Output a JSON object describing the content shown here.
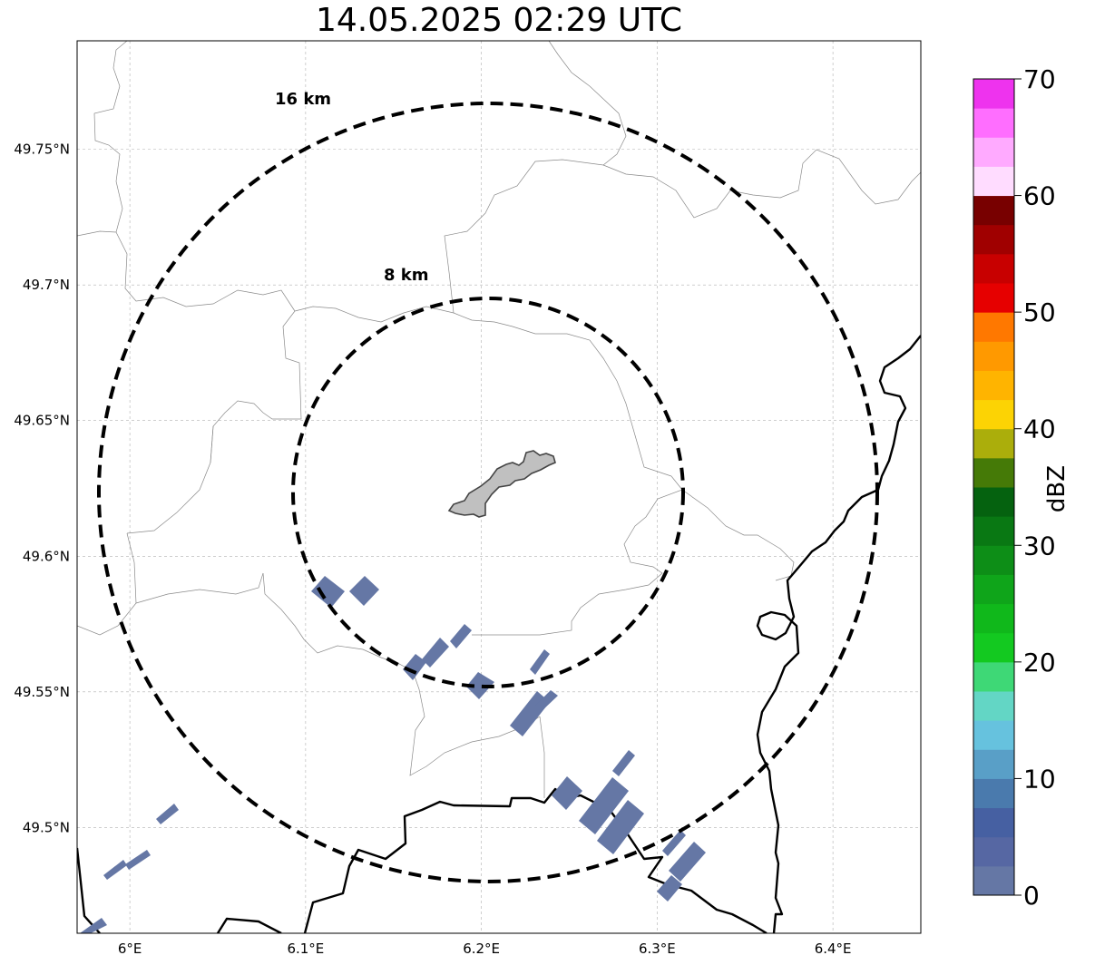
{
  "title": "14.05.2025 02:29 UTC",
  "map": {
    "lon_range": [
      5.97,
      6.45
    ],
    "lat_range": [
      49.461,
      49.79
    ],
    "lon_ticks": [
      {
        "value": 6.0,
        "label": "6°E"
      },
      {
        "value": 6.1,
        "label": "6.1°E"
      },
      {
        "value": 6.2,
        "label": "6.2°E"
      },
      {
        "value": 6.3,
        "label": "6.3°E"
      },
      {
        "value": 6.4,
        "label": "6.4°E"
      }
    ],
    "lat_ticks": [
      {
        "value": 49.5,
        "label": "49.5°N"
      },
      {
        "value": 49.55,
        "label": "49.55°N"
      },
      {
        "value": 49.6,
        "label": "49.6°N"
      },
      {
        "value": 49.65,
        "label": "49.65°N"
      },
      {
        "value": 49.7,
        "label": "49.7°N"
      },
      {
        "value": 49.75,
        "label": "49.75°N"
      }
    ],
    "center": {
      "lon": 6.203,
      "lat": 49.623
    },
    "rings": [
      {
        "label": "16 km",
        "radius_km": 16
      },
      {
        "label": "8 km",
        "radius_km": 8
      }
    ],
    "echo_color": "#6577a5",
    "city_color": "#c0c0c0"
  },
  "colorbar": {
    "label": "dBZ",
    "min": 0,
    "max": 70,
    "tick_labels": [
      "0",
      "10",
      "20",
      "30",
      "40",
      "50",
      "60",
      "70"
    ],
    "colors": [
      "#6577a5",
      "#5667a3",
      "#4660a2",
      "#4a7aad",
      "#599fc7",
      "#66c2de",
      "#63d6c5",
      "#3ed876",
      "#13c920",
      "#10b81b",
      "#0fa51a",
      "#0d8e17",
      "#097813",
      "#05620f",
      "#457a07",
      "#abae0b",
      "#fcd304",
      "#ffb400",
      "#ff9900",
      "#ff7800",
      "#e60000",
      "#c80000",
      "#a00000",
      "#780000",
      "#ffdcff",
      "#ffaaff",
      "#ff6eff",
      "#ee33ee"
    ]
  }
}
